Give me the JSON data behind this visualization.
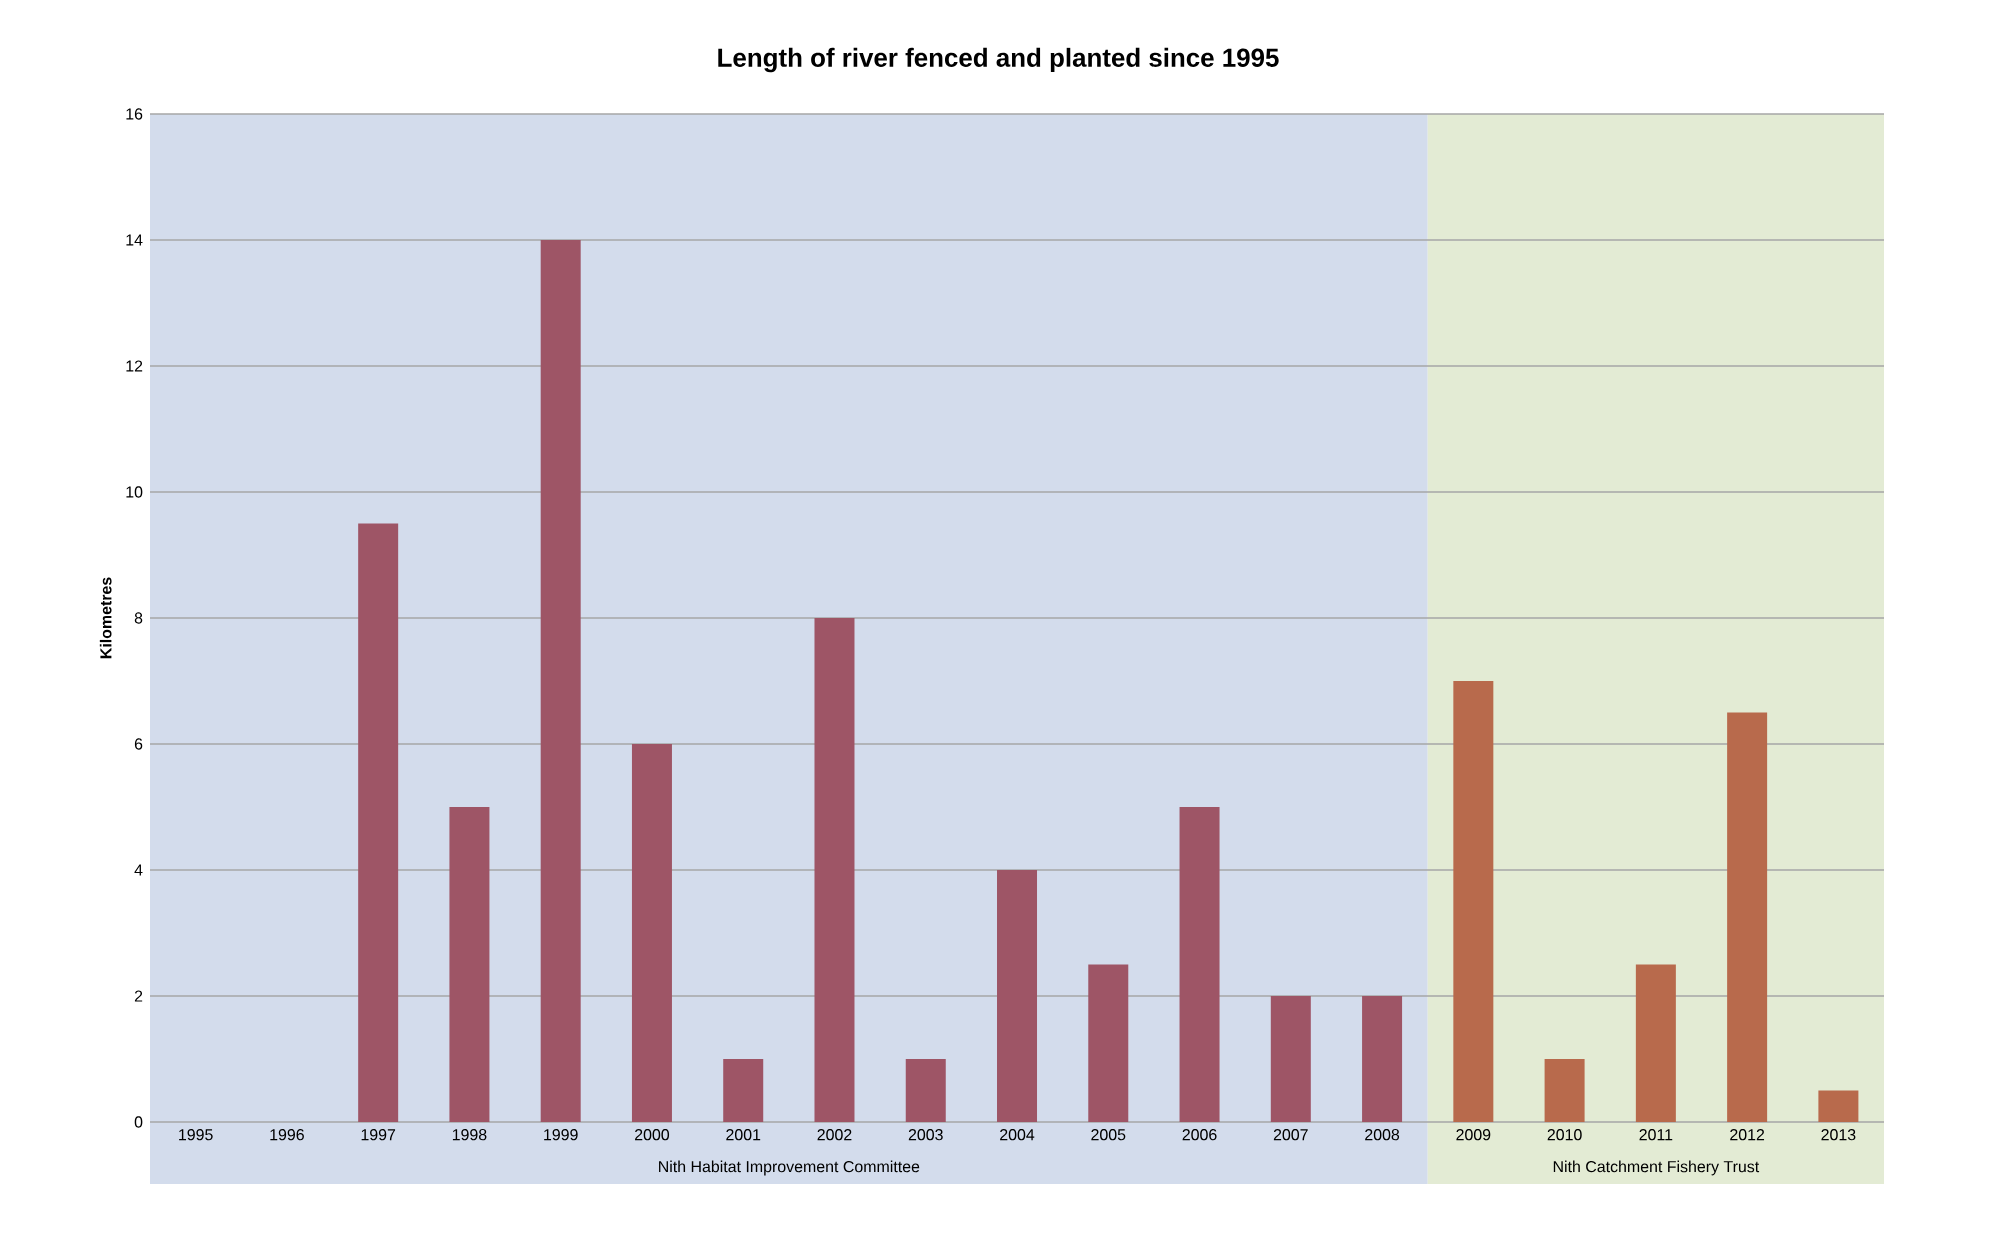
{
  "chart_data": {
    "type": "bar",
    "title": "Length of river fenced and planted since 1995",
    "ylabel": "Kilometres",
    "categories": [
      "1995",
      "1996",
      "1997",
      "1998",
      "1999",
      "2000",
      "2001",
      "2002",
      "2003",
      "2004",
      "2005",
      "2006",
      "2007",
      "2008",
      "2009",
      "2010",
      "2011",
      "2012",
      "2013"
    ],
    "values": [
      0,
      0,
      9.5,
      5,
      14,
      6,
      1,
      8,
      1,
      4,
      2.5,
      5,
      2,
      2,
      7,
      1,
      2.5,
      6.5,
      0.5
    ],
    "colors": [
      "#9e5566",
      "#9e5566",
      "#9e5566",
      "#9e5566",
      "#9e5566",
      "#9e5566",
      "#9e5566",
      "#9e5566",
      "#9e5566",
      "#9e5566",
      "#9e5566",
      "#9e5566",
      "#9e5566",
      "#9e5566",
      "#b86a4c",
      "#b86a4c",
      "#b86a4c",
      "#b86a4c",
      "#b86a4c"
    ],
    "ylim": [
      0,
      16
    ],
    "yticks": [
      0,
      2,
      4,
      6,
      8,
      10,
      12,
      14,
      16
    ],
    "grid": "y",
    "bands": [
      {
        "axis": "x",
        "from": "1995",
        "to": "2008",
        "label": "Nith Habitat Improvement Committee",
        "color": "#d3dcec"
      },
      {
        "axis": "x",
        "from": "2009",
        "to": "2013",
        "label": "Nith Catchment Fishery Trust",
        "color": "#e3ebd4"
      }
    ]
  }
}
